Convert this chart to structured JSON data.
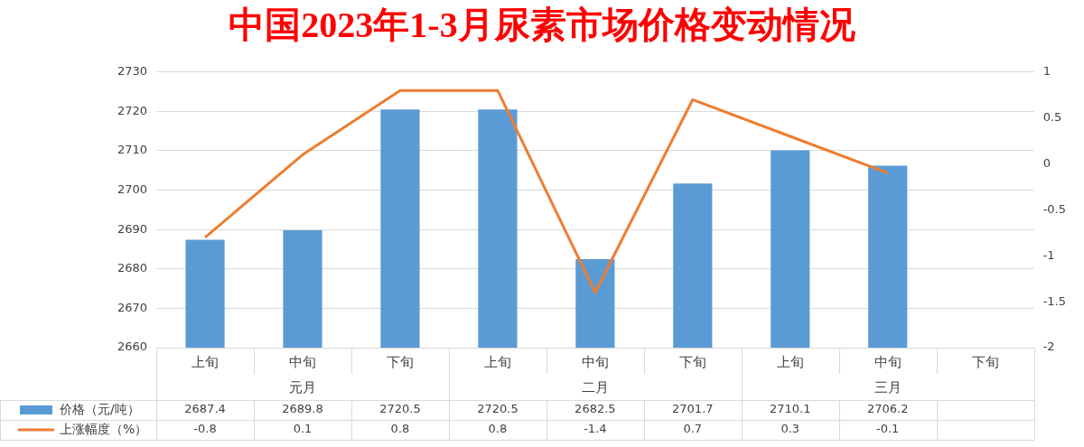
{
  "chart_data": {
    "type": "bar",
    "title": "中国2023年1-3月尿素市场价格变动情况",
    "categories": [
      "上旬",
      "中旬",
      "下旬",
      "上旬",
      "中旬",
      "下旬",
      "上旬",
      "中旬",
      "下旬"
    ],
    "series": [
      {
        "name": "价格（元/吨）",
        "color": "#5b9bd5",
        "values": [
          2687.4,
          2689.8,
          2720.5,
          2720.5,
          2682.5,
          2701.7,
          2710.1,
          2706.2,
          null
        ]
      },
      {
        "name": "上涨幅度（%）",
        "type": "line",
        "axis": "y2",
        "color": "#ed7d31",
        "values": [
          -0.8,
          0.1,
          0.8,
          0.8,
          -1.4,
          0.7,
          0.3,
          -0.1,
          null
        ]
      }
    ],
    "ylim": [
      2660,
      2730
    ],
    "yticks": [
      2660,
      2670,
      2680,
      2690,
      2700,
      2710,
      2720,
      2730
    ],
    "y2lim": [
      -2,
      1
    ],
    "y2ticks": [
      -2,
      -1.5,
      -1,
      -0.5,
      0,
      0.5,
      1
    ],
    "annotations": [
      "元月",
      "二月",
      "三月"
    ],
    "grid": "y",
    "legend": "bottom",
    "data_labels": true
  }
}
